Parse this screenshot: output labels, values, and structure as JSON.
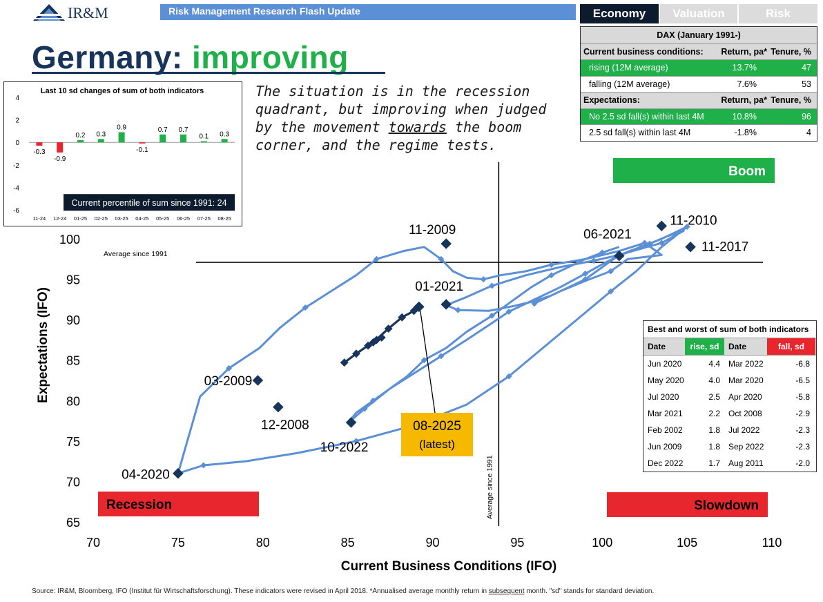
{
  "header": {
    "logo_text": "IR&M",
    "banner": "Risk Management Research Flash Update",
    "tabs": [
      "Economy",
      "Valuation",
      "Risk"
    ],
    "title_prefix": "Germany:",
    "title_emphasis": "improving"
  },
  "annotation": {
    "part1": "The situation is in the recession quadrant, but improving when judged by the movement",
    "underlined": "towards",
    "part2": "the boom corner, and the regime tests."
  },
  "mini_chart": {
    "type": "bar",
    "title": "Last 10 sd changes of sum of both indicators",
    "categories": [
      "11-24",
      "12-24",
      "01-25",
      "02-25",
      "03-25",
      "04-25",
      "05-25",
      "06-25",
      "07-25",
      "08-25"
    ],
    "values": [
      -0.3,
      -0.9,
      0.2,
      0.3,
      0.9,
      -0.1,
      0.7,
      0.7,
      0.1,
      0.3
    ],
    "value_labels": [
      "-0.3",
      "-0.9",
      "0.2",
      "0.3",
      "0.9",
      "-0.1",
      "0.7",
      "0.7",
      "0.1",
      "0.3"
    ],
    "yticks": [
      "4",
      "2",
      "0",
      "-2",
      "-4",
      "-6"
    ],
    "ylim": [
      -6,
      4
    ],
    "positive_color": "#20b04a",
    "negative_color": "#e8262d",
    "note": "Current percentile of sum since 1991: 24"
  },
  "dax_table": {
    "title": "DAX (January 1991-)",
    "section1": {
      "label": "Current business conditions:",
      "col2": "Return, pa*",
      "col3": "Tenure, %"
    },
    "rows1": [
      {
        "label": "rising (12M average)",
        "ret": "13.7%",
        "tenure": "47",
        "highlight": true
      },
      {
        "label": "falling (12M average)",
        "ret": "7.6%",
        "tenure": "53",
        "highlight": false
      }
    ],
    "section2": {
      "label": "Expectations:",
      "col2": "Return, pa*",
      "col3": "Tenure, %"
    },
    "rows2": [
      {
        "label": "No 2.5 sd fall(s) within last 4M",
        "ret": "10.8%",
        "tenure": "96",
        "highlight": true
      },
      {
        "label": "2.5 sd fall(s) within last 4M",
        "ret": "-1.8%",
        "tenure": "4",
        "highlight": false
      }
    ]
  },
  "best_worst": {
    "title": "Best and worst of sum of both indicators",
    "headers": [
      "Date",
      "rise, sd",
      "Date",
      "fall, sd"
    ],
    "rows": [
      [
        "Jun 2020",
        "4.4",
        "Mar 2022",
        "-6.8"
      ],
      [
        "May 2020",
        "4.0",
        "Mar 2020",
        "-6.5"
      ],
      [
        "Jul 2020",
        "2.5",
        "Apr 2020",
        "-5.8"
      ],
      [
        "Mar 2021",
        "2.2",
        "Oct 2008",
        "-2.9"
      ],
      [
        "Feb 2002",
        "1.8",
        "Jul 2022",
        "-2.3"
      ],
      [
        "Jun 2009",
        "1.8",
        "Sep 2022",
        "-2.3"
      ],
      [
        "Dec 2022",
        "1.7",
        "Aug 2011",
        "-2.0"
      ]
    ]
  },
  "chart_data": {
    "type": "line",
    "xlabel": "Current Business Conditions (IFO)",
    "ylabel": "Expectations (IFO)",
    "xlim": [
      70,
      110
    ],
    "ylim": [
      65,
      100
    ],
    "xticks": [
      70,
      75,
      80,
      85,
      90,
      95,
      100,
      105,
      110
    ],
    "yticks": [
      65,
      70,
      75,
      80,
      85,
      90,
      95,
      100
    ],
    "avg_x": 93.9,
    "avg_y": 97.1,
    "avg_x_label": "Average since 1991",
    "avg_y_label": "Average since 1991",
    "series": [
      {
        "name": "IFO history",
        "x": [
          96,
          97.5,
          99,
          100.5,
          101.5,
          103.5,
          102.5,
          101,
          99,
          97,
          95.5,
          94,
          93,
          92,
          91.2,
          90.5,
          89.5,
          88.3,
          86.7,
          85.5,
          84,
          82.5,
          81,
          79.8,
          78,
          76.3,
          75,
          76.5,
          79,
          82,
          85.5,
          89,
          92,
          94.5,
          96.5,
          98.5,
          100.5,
          102,
          103.5,
          105,
          104.5,
          103.5,
          102.3,
          101,
          100,
          99,
          98,
          97,
          96,
          94.8,
          93.3,
          91.5,
          90.8,
          92,
          93.5,
          95.5,
          97.5,
          99.5,
          101,
          102.3,
          103.5,
          104.8,
          103.8,
          102.8,
          101.5,
          100.3,
          99,
          97.5,
          96,
          94.5,
          93.3,
          92,
          90.5,
          89,
          87.5,
          86,
          85,
          85.5,
          86.5,
          87.5,
          88.5,
          89.5,
          90.8,
          92,
          93.5,
          94.8,
          95.8,
          97,
          98,
          99,
          100,
          101
        ],
        "y": [
          92,
          93.5,
          94.8,
          96,
          97.5,
          98,
          99.5,
          98.5,
          97.5,
          96.8,
          96,
          95.5,
          95,
          95.2,
          96,
          97.5,
          99,
          98.5,
          97.5,
          95.5,
          93.5,
          91.5,
          89,
          86.5,
          84,
          80.5,
          71,
          72,
          72.5,
          73.5,
          75,
          77,
          79.5,
          83,
          86.5,
          90,
          93.5,
          96,
          99,
          101.5,
          101,
          100,
          99,
          98,
          96.5,
          95,
          94,
          93,
          92.3,
          91.7,
          91.1,
          91.2,
          91.8,
          92.8,
          94.2,
          95.5,
          96.5,
          97.3,
          98,
          98.8,
          99.5,
          101,
          100.3,
          99.4,
          98.4,
          97.2,
          95.7,
          94,
          92.5,
          91,
          89.3,
          87.5,
          85.5,
          83.5,
          81.5,
          79,
          77.2,
          78.5,
          80,
          81.5,
          83,
          85,
          86.5,
          88.5,
          90.5,
          92.5,
          94,
          95.5,
          96.5,
          97.5,
          98.3,
          99
        ]
      },
      {
        "name": "Recent path to 08-2025",
        "x": [
          84.8,
          85.5,
          86.2,
          86.7,
          87,
          86.5,
          87.4,
          88.2,
          88.9,
          89.2
        ],
        "y": [
          84.7,
          85.8,
          86.8,
          87.5,
          87.8,
          87.2,
          88.9,
          90.3,
          91.1,
          91.6
        ]
      }
    ],
    "points": [
      {
        "label": "11-2010",
        "x": 103.5,
        "y": 101.6
      },
      {
        "label": "11-2017",
        "x": 105.2,
        "y": 99.0
      },
      {
        "label": "06-2021",
        "x": 101.0,
        "y": 97.9
      },
      {
        "label": "11-2009",
        "x": 90.8,
        "y": 99.4
      },
      {
        "label": "01-2021",
        "x": 90.8,
        "y": 91.9
      },
      {
        "label": "03-2009",
        "x": 79.7,
        "y": 82.5
      },
      {
        "label": "12-2008",
        "x": 80.9,
        "y": 79.2
      },
      {
        "label": "10-2022",
        "x": 85.2,
        "y": 77.3
      },
      {
        "label": "04-2020",
        "x": 75.0,
        "y": 71.0
      },
      {
        "label": "08-2025",
        "x": 89.2,
        "y": 91.6
      }
    ],
    "latest_label": [
      "08-2025",
      "(latest)"
    ],
    "quadrants": {
      "boom": "Boom",
      "recession": "Recession",
      "slowdown": "Slowdown"
    },
    "line_color": "#5b8fd6",
    "marker_color": "#17345a",
    "boom_color": "#20b04a",
    "alert_color": "#e8262d",
    "latest_color": "#f7b800"
  },
  "source": {
    "part1": "Source: IR&M, Bloomberg, IFO (Institut für Wirtschaftsforschung). These indicators were revised in April 2018. *Annualised average monthly return in",
    "underlined": "subsequent",
    "part2": "month. \"sd\" stands for standard deviation."
  }
}
